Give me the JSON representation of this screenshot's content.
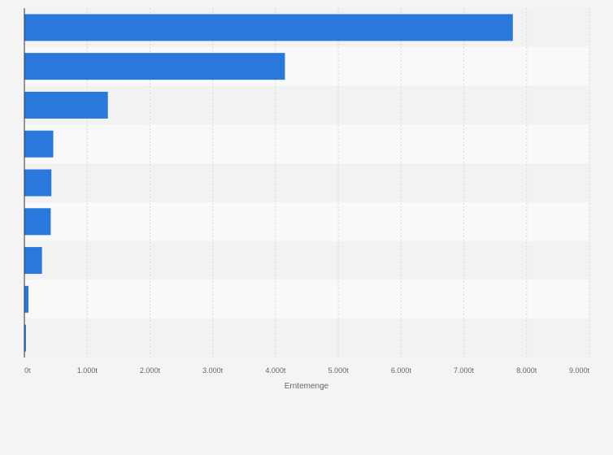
{
  "chart_data": {
    "type": "bar",
    "orientation": "horizontal",
    "categories": [
      "",
      "",
      "",
      "",
      "",
      "",
      "",
      "",
      ""
    ],
    "values": [
      7780,
      4150,
      1330,
      460,
      430,
      420,
      280,
      65,
      25
    ],
    "xlabel": "Erntemenge",
    "ylabel": "",
    "xlim": [
      0,
      9000
    ],
    "ticks": [
      0,
      1000,
      2000,
      3000,
      4000,
      5000,
      6000,
      7000,
      8000,
      9000
    ],
    "tick_labels": [
      "0t",
      "1.000t",
      "2.000t",
      "3.000t",
      "4.000t",
      "5.000t",
      "6.000t",
      "7.000t",
      "8.000t",
      "9.000t"
    ],
    "grid": true,
    "colors": {
      "bar": "#2a78dc",
      "band_dark": "#f2f2f2",
      "band_light": "#f9f9f9",
      "grid": "#d8d8d8",
      "axis": "#333333"
    }
  }
}
